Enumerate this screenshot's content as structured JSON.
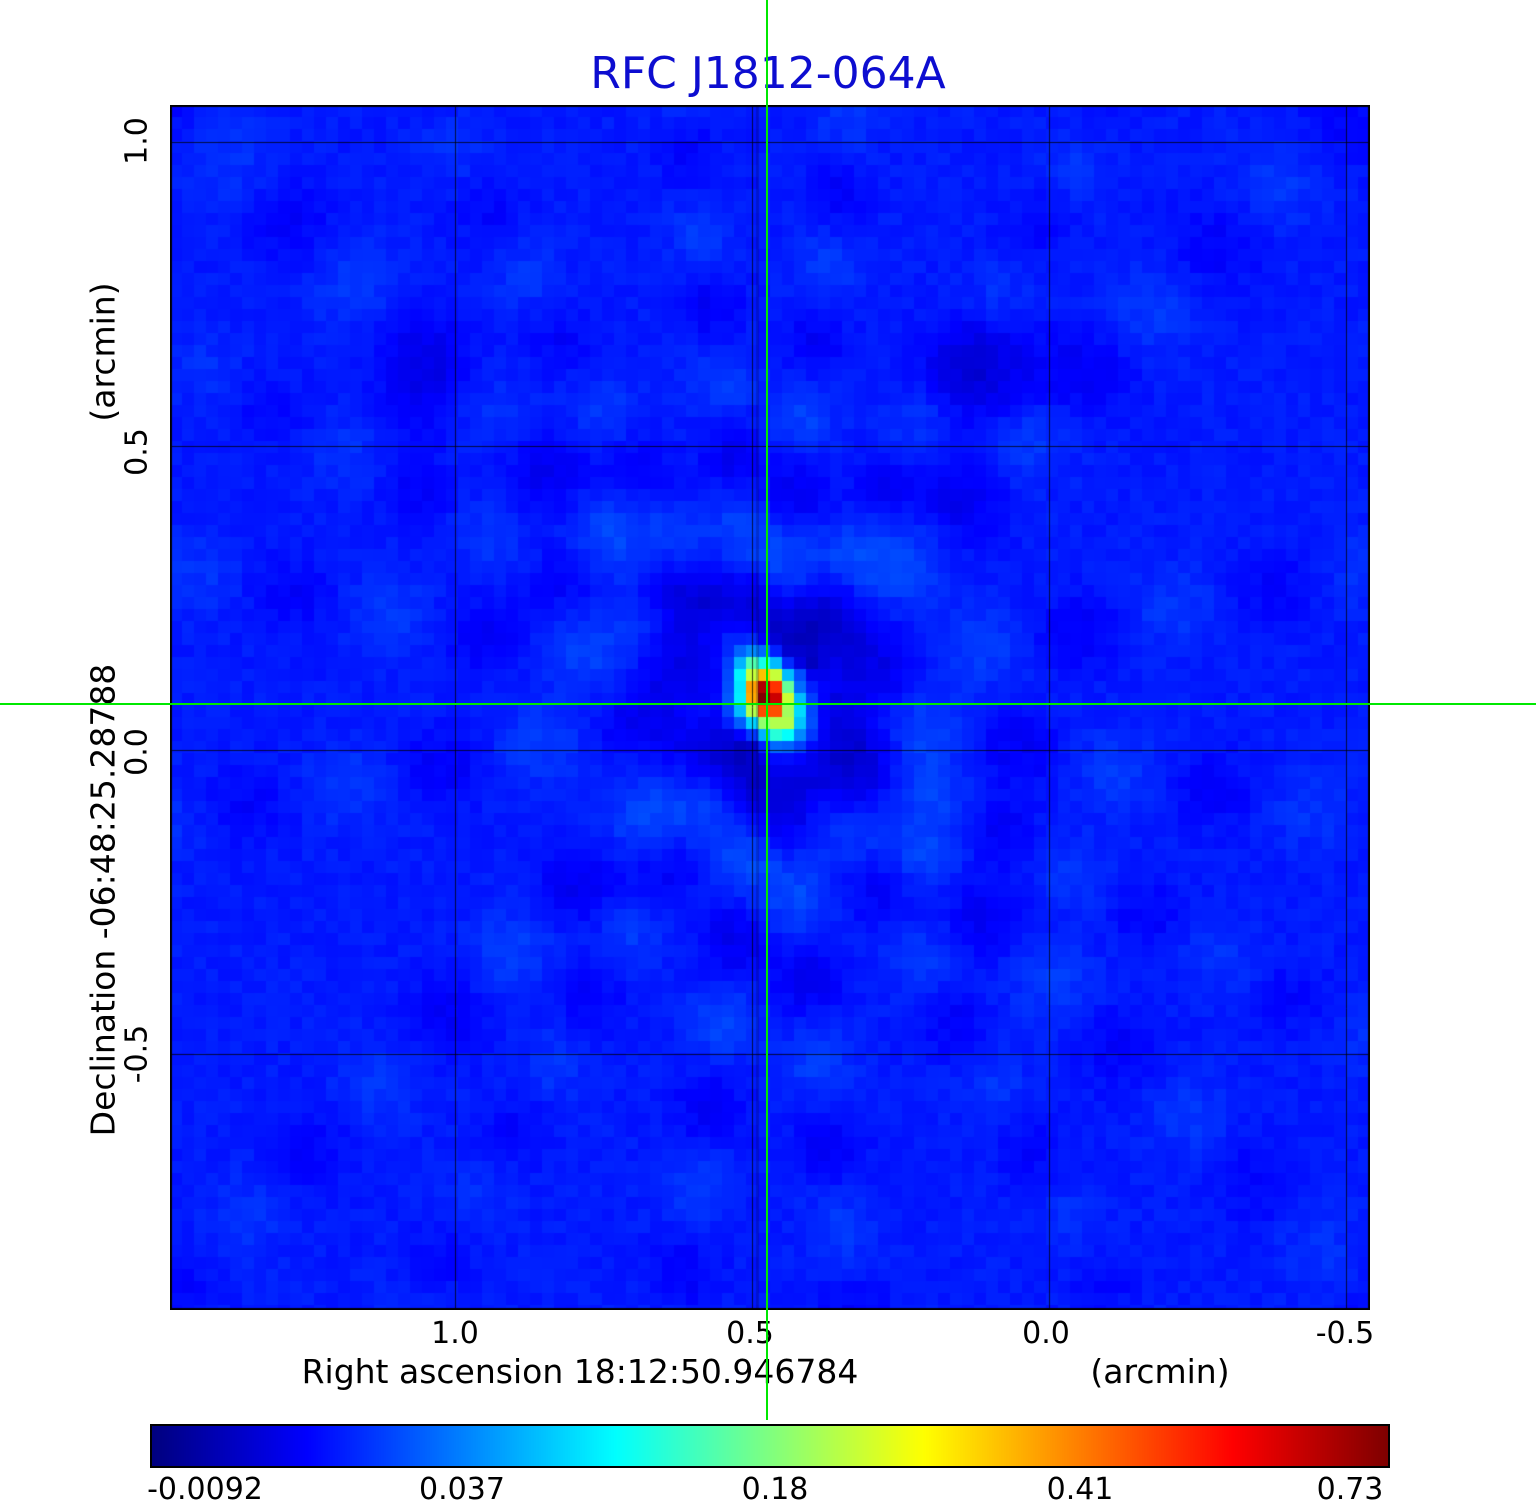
{
  "figure": {
    "title": "RFC J1812-064A",
    "title_color": "#0d0dd0"
  },
  "axes": {
    "x_label": "Right ascension  18:12:50.946784",
    "x_unit": "(arcmin)",
    "y_label": "Declination  -06:48:25.28788",
    "y_unit": "(arcmin)",
    "x_tick_labels": [
      "1.0",
      "0.5",
      "0.0",
      "-0.5"
    ],
    "y_tick_labels": [
      "1.0",
      "0.5",
      "0.0",
      "-0.5"
    ]
  },
  "colorbar": {
    "tick_labels": [
      "-0.0092",
      "0.037",
      "0.18",
      "0.41",
      "0.73"
    ],
    "colormap": "jet"
  },
  "chart_data": {
    "type": "heatmap",
    "title": "RFC J1812-064A",
    "xlabel": "Right ascension  18:12:50.946784 (arcmin)",
    "ylabel": "Declination  -06:48:25.28788 (arcmin)",
    "x_ticks": [
      1.0,
      0.5,
      0.0,
      -0.5
    ],
    "y_ticks": [
      1.0,
      0.5,
      0.0,
      -0.5
    ],
    "xlim": [
      1.48,
      -0.54
    ],
    "ylim": [
      -0.92,
      1.06
    ],
    "grid": true,
    "colormap": "jet",
    "color_scale_ticks": [
      -0.0092,
      0.037,
      0.18,
      0.41,
      0.73
    ],
    "intensity_min": -0.0092,
    "intensity_peak": 0.73,
    "source": {
      "x_arcmin": 0.475,
      "y_arcmin": 0.09,
      "peak_value": 0.73
    },
    "crosshair": {
      "x_arcmin": 0.475,
      "y_arcmin": 0.075,
      "color": "#00e800"
    },
    "features": [
      "central compact source rendered through full jet colormap (dark-red core, red/orange, yellow ring, cyan fringe)",
      "faint radial sidelobe streaks across blue background",
      "dark negative-sidelobe patches adjacent to the core"
    ]
  }
}
